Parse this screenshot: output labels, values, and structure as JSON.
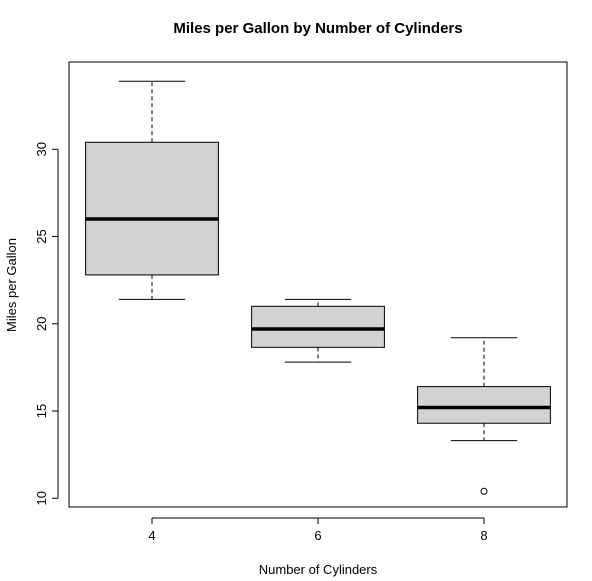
{
  "chart_data": {
    "type": "boxplot",
    "title": "Miles per Gallon by Number of Cylinders",
    "xlabel": "Number of Cylinders",
    "ylabel": "Miles per Gallon",
    "categories": [
      "4",
      "6",
      "8"
    ],
    "boxes": [
      {
        "category": "4",
        "whisker_low": 21.4,
        "q1": 22.8,
        "median": 26.0,
        "q3": 30.4,
        "whisker_high": 33.9,
        "outliers": []
      },
      {
        "category": "6",
        "whisker_low": 17.8,
        "q1": 18.65,
        "median": 19.7,
        "q3": 21.0,
        "whisker_high": 21.4,
        "outliers": []
      },
      {
        "category": "8",
        "whisker_low": 13.3,
        "q1": 14.3,
        "median": 15.2,
        "q3": 16.4,
        "whisker_high": 19.2,
        "outliers": [
          10.4
        ]
      }
    ],
    "yticks": [
      10,
      15,
      20,
      25,
      30
    ],
    "ylim": [
      9.5,
      35.0
    ],
    "box_fill": "#d3d3d3",
    "grid": false
  }
}
